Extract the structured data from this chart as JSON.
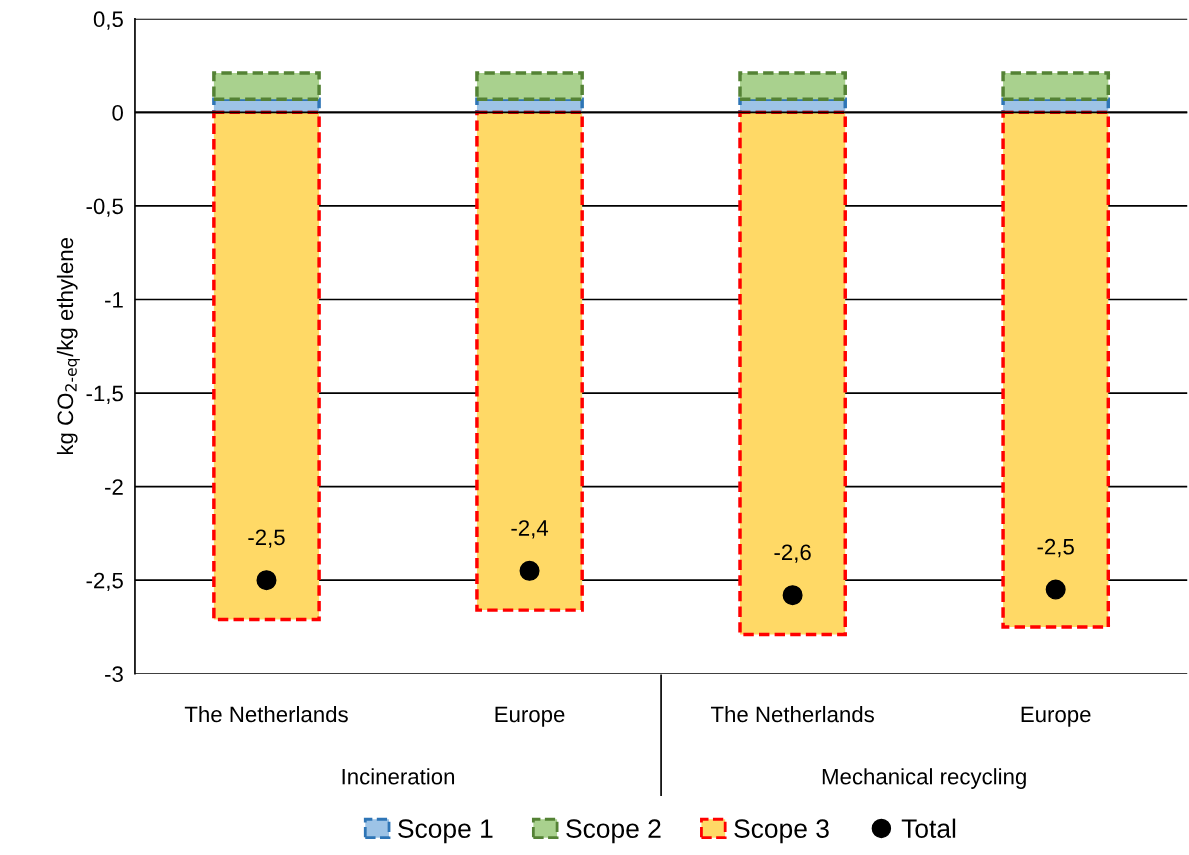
{
  "chart_data": {
    "type": "bar",
    "stacked": true,
    "ylabel": "kg CO$_{2-eq}$/kg ethylene",
    "categories": [
      "The Netherlands",
      "Europe",
      "The Netherlands",
      "Europe"
    ],
    "series": [
      {
        "name": "Scope 1",
        "color": "#9dc3e6",
        "values": [
          0.07,
          0.07,
          0.07,
          0.07
        ]
      },
      {
        "name": "Scope 2",
        "color": "#a9d18e",
        "values": [
          0.14,
          0.14,
          0.14,
          0.14
        ]
      },
      {
        "name": "Scope 3",
        "color": "#ffd966",
        "values": [
          -2.71,
          -2.66,
          -2.79,
          -2.75
        ]
      },
      {
        "name": "Total",
        "type": "scatter",
        "color": "#000000",
        "values": [
          -2.5,
          -2.45,
          -2.58,
          -2.55
        ],
        "value_labels": [
          "-2,5",
          "-2,4",
          "-2,6",
          "-2,5"
        ]
      }
    ],
    "annotations": [
      "Incineration",
      "Mechanical recycling"
    ],
    "ylim": [
      -3,
      0.5
    ],
    "yticks": [
      {
        "value": 0.5,
        "label": "0,5"
      },
      0,
      {
        "value": -0.5,
        "label": "-0,5"
      },
      -1,
      {
        "value": -1.5,
        "label": "-1,5"
      },
      -2,
      {
        "value": -2.5,
        "label": "-2,5"
      },
      -3
    ],
    "grid": "y",
    "legend": "bottom"
  }
}
